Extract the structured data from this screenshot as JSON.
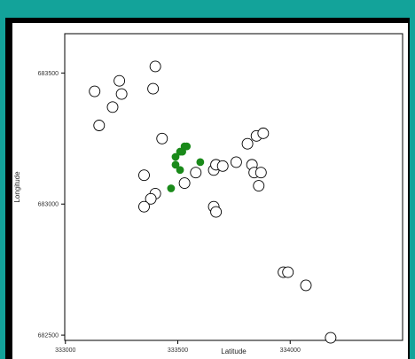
{
  "chart_data": {
    "type": "scatter",
    "title": "",
    "xlabel": "Latitude",
    "ylabel": "Longitude",
    "xlim": [
      332997,
      334500
    ],
    "ylim": [
      682480,
      683650
    ],
    "x_ticks": [
      333000,
      333500,
      334000
    ],
    "x_tick_labels": [
      "333000",
      "333500",
      "334000"
    ],
    "y_ticks": [
      682500,
      683000,
      683500
    ],
    "y_tick_labels": [
      "682500",
      "683000",
      "683500"
    ],
    "grid": false,
    "legend": "none",
    "series": [
      {
        "color": "#ffffff",
        "edge_color": "#000000",
        "marker": "open-circle",
        "points": [
          [
            333150,
            683300
          ],
          [
            333210,
            683370
          ],
          [
            333250,
            683420
          ],
          [
            333130,
            683430
          ],
          [
            333240,
            683470
          ],
          [
            333390,
            683440
          ],
          [
            333400,
            683525
          ],
          [
            333350,
            683110
          ],
          [
            333430,
            683250
          ],
          [
            333400,
            683040
          ],
          [
            333380,
            683020
          ],
          [
            333350,
            682990
          ],
          [
            333530,
            683080
          ],
          [
            333580,
            683120
          ],
          [
            333660,
            683130
          ],
          [
            333670,
            683150
          ],
          [
            333700,
            683145
          ],
          [
            333760,
            683160
          ],
          [
            333810,
            683230
          ],
          [
            333850,
            683260
          ],
          [
            333880,
            683270
          ],
          [
            333830,
            683150
          ],
          [
            333840,
            683120
          ],
          [
            333870,
            683120
          ],
          [
            333860,
            683070
          ],
          [
            333660,
            682990
          ],
          [
            333670,
            682970
          ],
          [
            333970,
            682740
          ],
          [
            333990,
            682740
          ],
          [
            334070,
            682690
          ],
          [
            334180,
            682490
          ]
        ]
      },
      {
        "color": "#1a8a1a",
        "edge_color": "#1a8a1a",
        "marker": "filled-circle",
        "points": [
          [
            333490,
            683180
          ],
          [
            333490,
            683150
          ],
          [
            333510,
            683200
          ],
          [
            333520,
            683200
          ],
          [
            333510,
            683130
          ],
          [
            333530,
            683220
          ],
          [
            333540,
            683220
          ],
          [
            333600,
            683160
          ],
          [
            333470,
            683060
          ]
        ]
      }
    ]
  }
}
